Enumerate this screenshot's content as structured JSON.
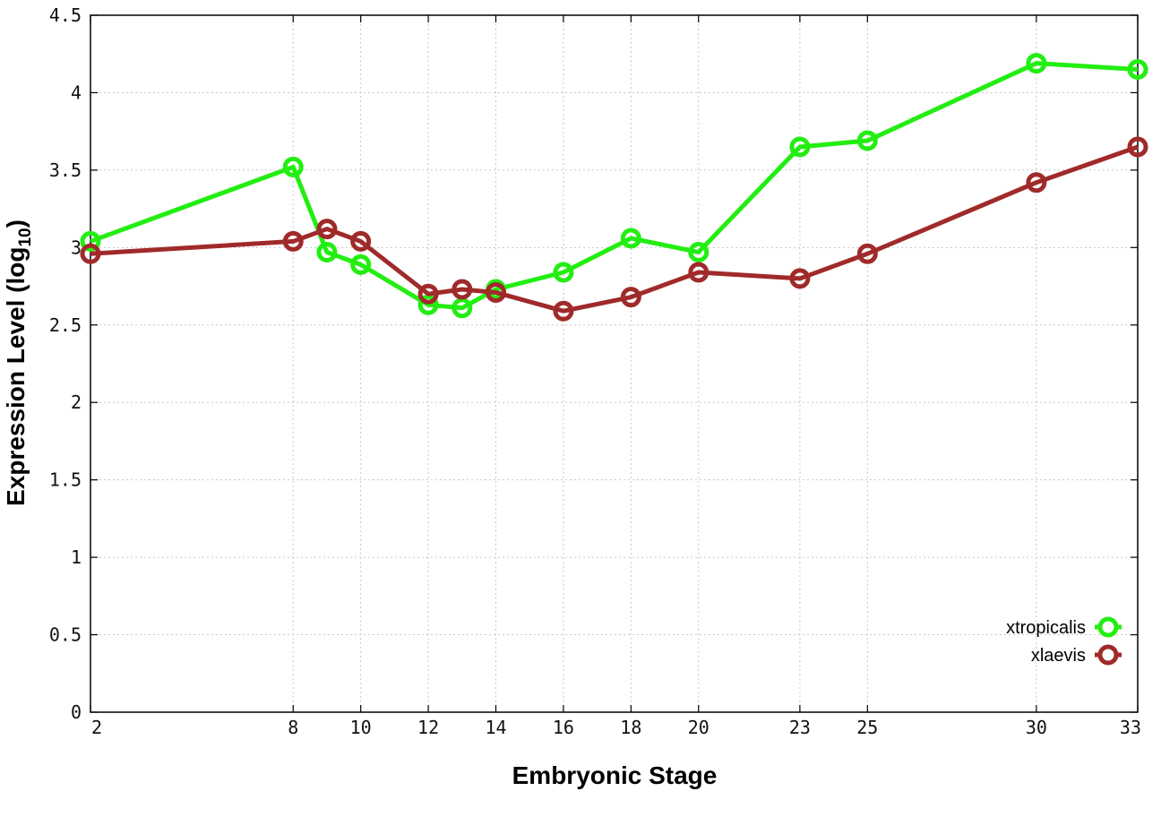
{
  "chart_data": {
    "type": "line",
    "xlabel": "Embryonic Stage",
    "ylabel_main": "Expression Level (log",
    "ylabel_sub": "10",
    "ylabel_end": ")",
    "ylim": [
      0,
      4.5
    ],
    "xlim": [
      2,
      33
    ],
    "grid": true,
    "legend_position": "bottom-right",
    "x_ticks": [
      2,
      8,
      10,
      12,
      14,
      16,
      18,
      20,
      23,
      25,
      30,
      33
    ],
    "y_ticks": [
      "0",
      "0.5",
      "1",
      "1.5",
      "2",
      "2.5",
      "3",
      "3.5",
      "4",
      "4.5"
    ],
    "series": [
      {
        "name": "xtropicalis",
        "color": "#22ee11",
        "x": [
          2,
          8,
          9,
          10,
          12,
          13,
          14,
          16,
          18,
          20,
          23,
          25,
          30,
          33
        ],
        "y": [
          3.04,
          3.52,
          2.97,
          2.89,
          2.63,
          2.61,
          2.73,
          2.84,
          3.06,
          2.97,
          3.65,
          3.69,
          4.19,
          4.15
        ]
      },
      {
        "name": "xlaevis",
        "color": "#a02a2a",
        "x": [
          2,
          8,
          9,
          10,
          12,
          13,
          14,
          16,
          18,
          20,
          23,
          25,
          30,
          33
        ],
        "y": [
          2.96,
          3.04,
          3.12,
          3.04,
          2.7,
          2.73,
          2.71,
          2.59,
          2.68,
          2.84,
          2.8,
          2.96,
          3.42,
          3.65
        ]
      }
    ]
  }
}
